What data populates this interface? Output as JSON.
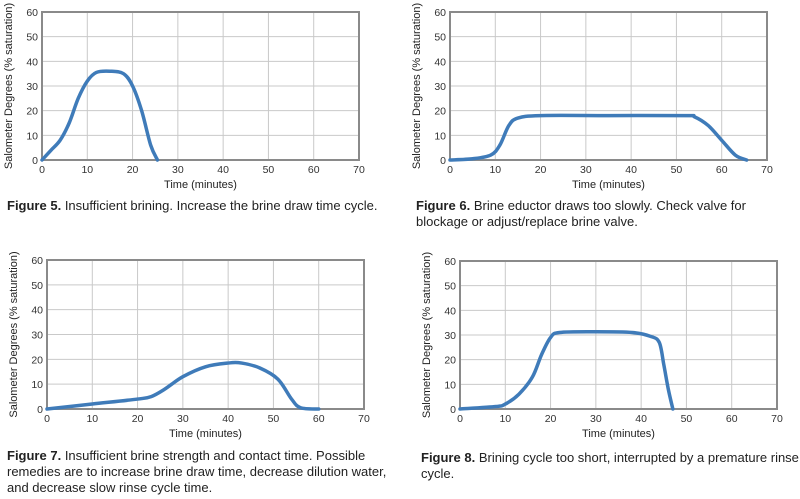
{
  "chart_data": [
    {
      "type": "line",
      "id": "fig5",
      "xlabel": "Time (minutes)",
      "ylabel": "Salometer Degrees (% saturation)",
      "xlim": [
        0,
        70
      ],
      "ylim": [
        0,
        60
      ],
      "xticks": [
        "0",
        "10",
        "20",
        "30",
        "40",
        "50",
        "60",
        "70"
      ],
      "yticks": [
        "0",
        "10",
        "20",
        "30",
        "40",
        "50",
        "60"
      ],
      "grid": true,
      "series": [
        {
          "name": "salometer",
          "x": [
            0,
            2,
            4,
            6,
            8,
            10,
            12,
            15,
            18,
            20,
            22,
            24,
            25.5
          ],
          "y": [
            0,
            4,
            8,
            15,
            25,
            32,
            35.5,
            36,
            35,
            30,
            20,
            6,
            0
          ]
        }
      ],
      "caption_label": "Figure 5.",
      "caption_text": "Insufficient brining. Increase the brine draw time cycle."
    },
    {
      "type": "line",
      "id": "fig6",
      "xlabel": "Time (minutes)",
      "ylabel": "Salometer Degrees (% saturation)",
      "xlim": [
        0,
        70
      ],
      "ylim": [
        0,
        60
      ],
      "xticks": [
        "0",
        "10",
        "20",
        "30",
        "40",
        "50",
        "60",
        "70"
      ],
      "yticks": [
        "0",
        "10",
        "20",
        "30",
        "40",
        "50",
        "60"
      ],
      "grid": true,
      "series": [
        {
          "name": "salometer",
          "x": [
            0,
            5,
            9,
            11,
            13,
            15,
            20,
            35,
            52,
            54,
            57,
            60,
            63,
            65.5
          ],
          "y": [
            0,
            0.5,
            2,
            6,
            14,
            17,
            18,
            18,
            18,
            17.5,
            14,
            8,
            2,
            0
          ]
        }
      ],
      "caption_label": "Figure 6.",
      "caption_text": "Brine eductor draws too slowly. Check valve for blockage or adjust/replace brine valve."
    },
    {
      "type": "line",
      "id": "fig7",
      "xlabel": "Time (minutes)",
      "ylabel": "Salometer Degrees (% saturation)",
      "xlim": [
        0,
        70
      ],
      "ylim": [
        0,
        60
      ],
      "xticks": [
        "0",
        "10",
        "20",
        "30",
        "40",
        "50",
        "60",
        "70"
      ],
      "yticks": [
        "0",
        "10",
        "20",
        "30",
        "40",
        "50",
        "60"
      ],
      "grid": true,
      "series": [
        {
          "name": "salometer",
          "x": [
            0,
            10,
            20,
            23,
            26,
            30,
            35,
            40,
            43,
            47,
            51,
            54,
            56,
            60
          ],
          "y": [
            0,
            2,
            4,
            5,
            8,
            13,
            17,
            18.5,
            18.5,
            16.5,
            12,
            4,
            0.5,
            0
          ]
        }
      ],
      "caption_label": "Figure 7.",
      "caption_text": "Insufficient brine strength and contact time. Possible remedies are to increase brine draw time, decrease dilution water, and decrease slow rinse cycle time."
    },
    {
      "type": "line",
      "id": "fig8",
      "xlabel": "Time (minutes)",
      "ylabel": "Salometer Degrees (% saturation)",
      "xlim": [
        0,
        70
      ],
      "ylim": [
        0,
        60
      ],
      "xticks": [
        "0",
        "10",
        "20",
        "30",
        "40",
        "50",
        "60",
        "70"
      ],
      "yticks": [
        "0",
        "10",
        "20",
        "30",
        "40",
        "50",
        "60"
      ],
      "grid": true,
      "series": [
        {
          "name": "salometer",
          "x": [
            0,
            8,
            10,
            13,
            16,
            18,
            20,
            22,
            30,
            38,
            42,
            44,
            45,
            46,
            47
          ],
          "y": [
            0,
            1,
            2,
            6,
            13,
            22,
            29,
            31,
            31.3,
            31,
            29.5,
            27,
            18,
            8,
            0
          ]
        }
      ],
      "caption_label": "Figure 8.",
      "caption_text": "Brining cycle too short, interrupted by a premature rinse cycle."
    }
  ],
  "colors": {
    "line": "#3f7bb9",
    "grid": "#c9c9c9",
    "frame": "#8a8a8a"
  }
}
